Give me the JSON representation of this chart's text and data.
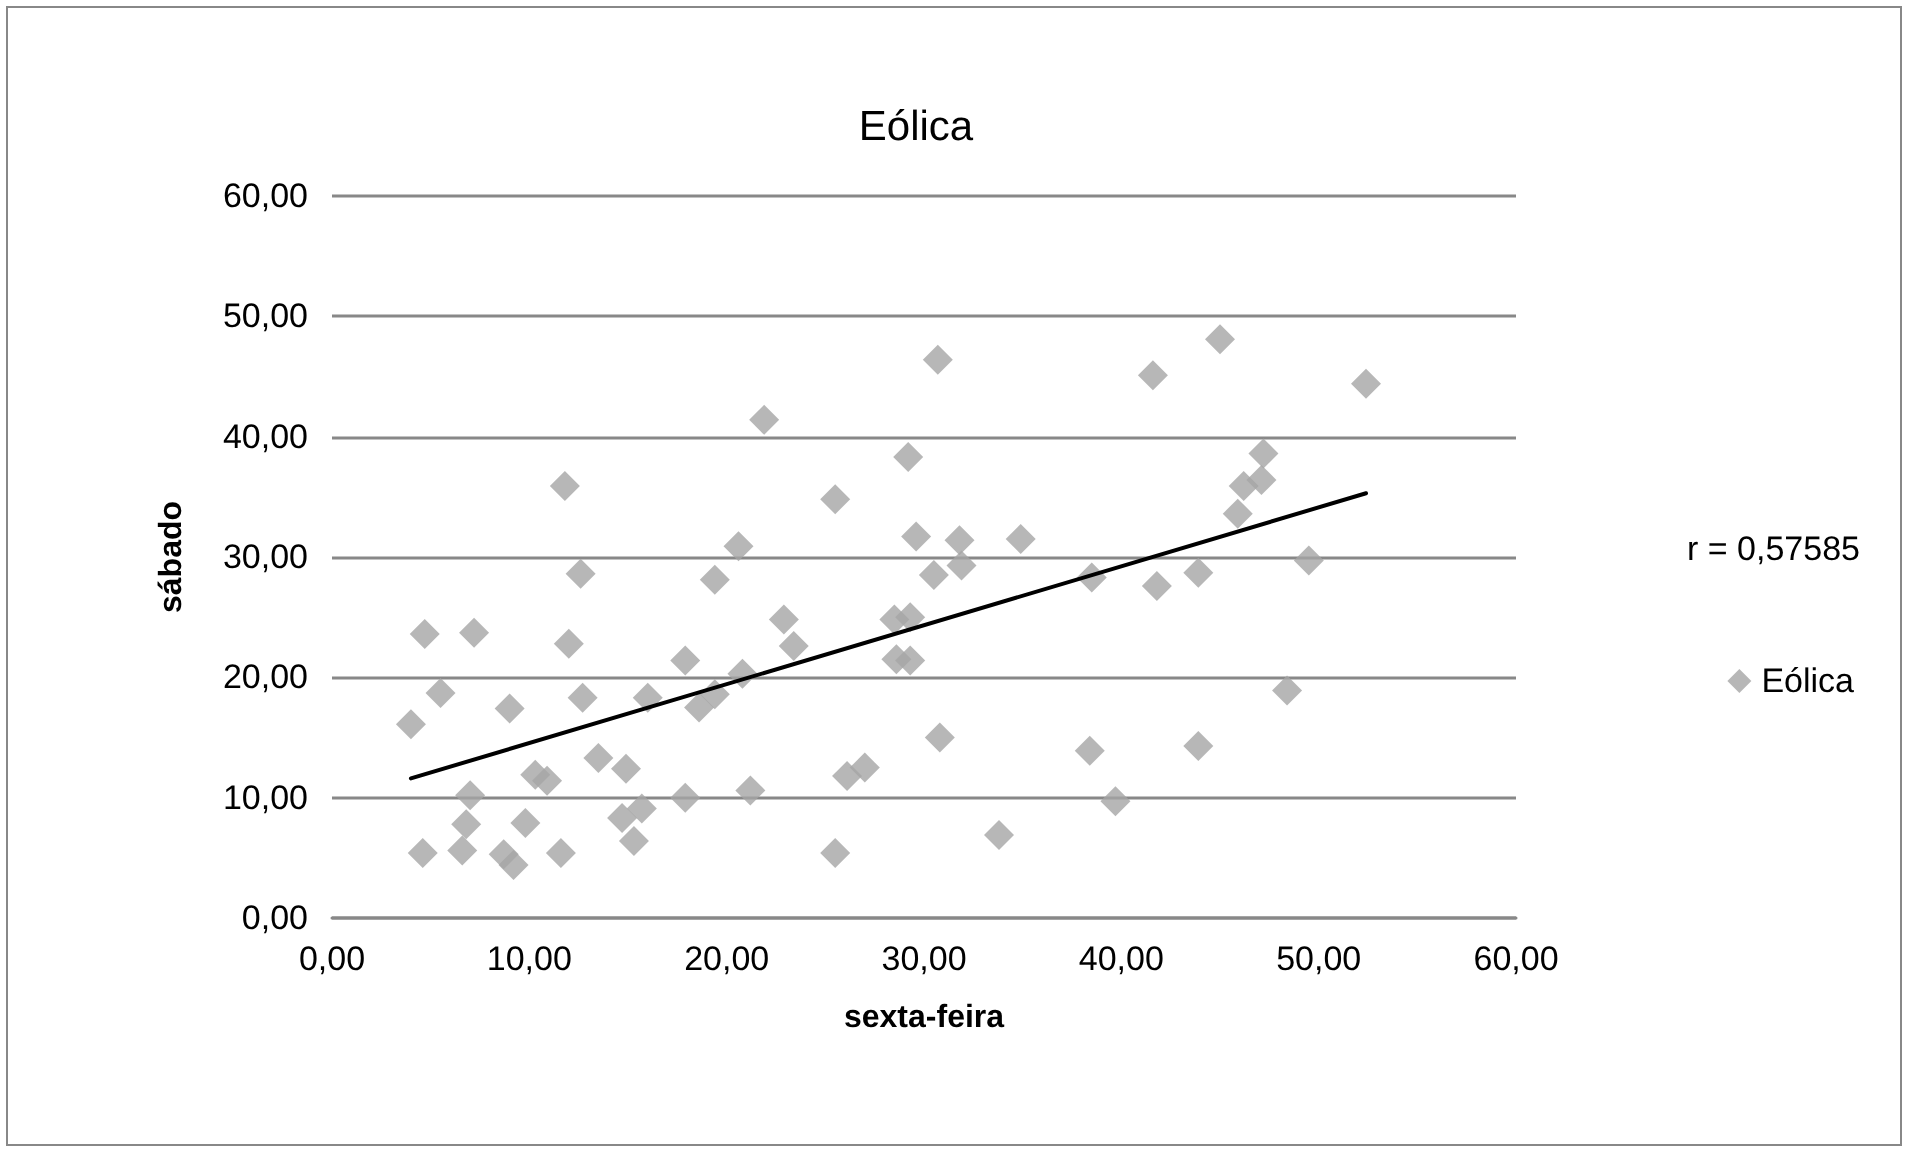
{
  "chart_data": {
    "type": "scatter",
    "title": "Eólica",
    "xlabel": "sexta-feira",
    "ylabel": "sábado",
    "annotations": [
      "r = 0,57585"
    ],
    "xlim": [
      0,
      60
    ],
    "xticks": [
      {
        "value": 0,
        "label": "0,00"
      },
      {
        "value": 10,
        "label": "10,00"
      },
      {
        "value": 20,
        "label": "20,00"
      },
      {
        "value": 30,
        "label": "30,00"
      },
      {
        "value": 40,
        "label": "40,00"
      },
      {
        "value": 50,
        "label": "50,00"
      },
      {
        "value": 60,
        "label": "60,00"
      }
    ],
    "ylim": [
      0,
      60
    ],
    "yticks": [
      {
        "value": 0,
        "label": "0,00"
      },
      {
        "value": 10,
        "label": "10,00"
      },
      {
        "value": 20,
        "label": "20,00"
      },
      {
        "value": 30,
        "label": "30,00"
      },
      {
        "value": 40,
        "label": "40,00"
      },
      {
        "value": 50,
        "label": "50,00"
      },
      {
        "value": 60,
        "label": "60,00"
      }
    ],
    "grid": "y",
    "legend": "right",
    "marker": "diamond",
    "series": [
      {
        "name": "Eólica",
        "color": "#a5a5a5",
        "x": [
          4.0,
          4.7,
          5.5,
          4.6,
          7.2,
          7.0,
          6.8,
          6.6,
          9.0,
          8.7,
          9.2,
          9.8,
          10.3,
          10.9,
          11.6,
          11.8,
          12.0,
          12.6,
          12.7,
          13.5,
          14.9,
          14.7,
          15.3,
          15.7,
          16.0,
          17.9,
          17.9,
          18.6,
          19.4,
          19.4,
          20.6,
          20.8,
          21.2,
          21.9,
          22.9,
          23.4,
          25.5,
          25.5,
          26.1,
          27.0,
          28.6,
          29.3,
          28.5,
          29.3,
          29.2,
          29.6,
          30.7,
          31.8,
          30.5,
          31.9,
          30.8,
          33.8,
          34.9,
          38.5,
          38.4,
          39.7,
          41.6,
          41.8,
          43.9,
          43.9,
          45.0,
          45.9,
          46.2,
          47.1,
          47.2,
          48.4,
          49.5,
          52.4
        ],
        "values": [
          16.1,
          23.6,
          18.7,
          5.4,
          23.7,
          10.2,
          7.8,
          5.6,
          17.4,
          5.3,
          4.4,
          7.9,
          11.9,
          11.4,
          5.4,
          35.9,
          22.8,
          28.6,
          18.3,
          13.3,
          12.4,
          8.3,
          6.4,
          9.1,
          18.3,
          10.0,
          21.4,
          17.5,
          18.6,
          28.1,
          30.9,
          20.3,
          10.6,
          41.4,
          24.8,
          22.6,
          5.4,
          34.8,
          11.8,
          12.5,
          21.5,
          21.4,
          24.8,
          25.0,
          38.3,
          31.7,
          46.4,
          31.4,
          28.5,
          29.3,
          15.0,
          6.9,
          31.5,
          28.3,
          13.9,
          9.7,
          45.1,
          27.6,
          28.7,
          14.3,
          48.1,
          33.6,
          35.9,
          36.4,
          38.6,
          18.9,
          29.7,
          44.4
        ]
      },
      {
        "type": "line",
        "color": "#000000",
        "marker": "none",
        "line_style": "solid",
        "x": [
          4.0,
          52.4
        ],
        "values": [
          11.6,
          35.3
        ]
      }
    ]
  }
}
